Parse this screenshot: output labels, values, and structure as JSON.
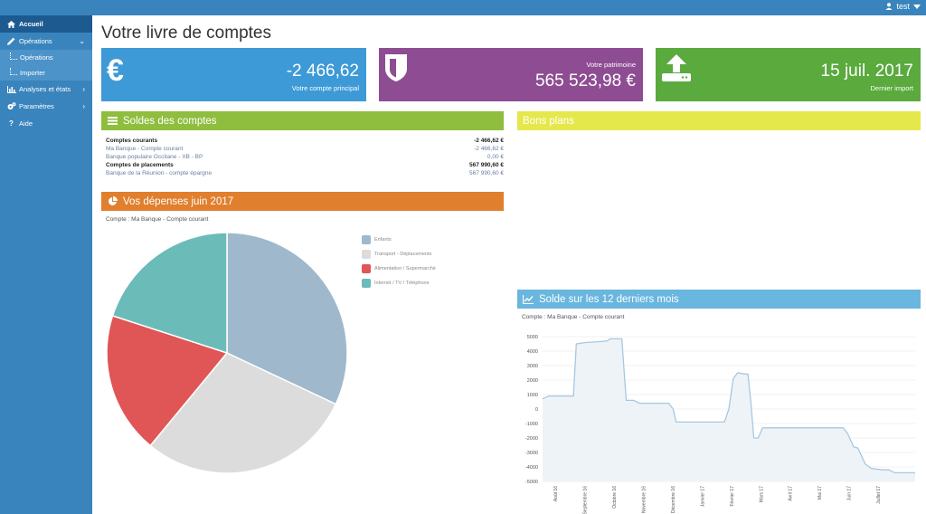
{
  "topbar": {
    "user": "test"
  },
  "sidebar": {
    "items": [
      {
        "label": "Accueil",
        "icon": "home-icon"
      },
      {
        "label": "Opérations",
        "icon": "pencil-icon"
      },
      {
        "label": "Analyses et états",
        "icon": "bar-chart-icon"
      },
      {
        "label": "Paramètres",
        "icon": "gears-icon"
      },
      {
        "label": "Aide",
        "icon": "question-icon"
      }
    ],
    "subitems": [
      {
        "label": "Opérations"
      },
      {
        "label": "Importer"
      }
    ]
  },
  "page": {
    "title": "Votre livre de comptes"
  },
  "tiles": [
    {
      "value": "-2 466,62",
      "label": "Votre compte principal",
      "color": "#3d9ad6",
      "icon": "euro-icon"
    },
    {
      "value": "565 523,98 €",
      "label": "Votre patrimoine",
      "color": "#8e4d93",
      "icon": "shield-icon"
    },
    {
      "value": "15 juil. 2017",
      "label": "Dernier import",
      "color": "#5aaa3e",
      "icon": "upload-icon"
    }
  ],
  "balances": {
    "title": "Soldes des comptes",
    "color": "#8fbe3f",
    "rows": [
      {
        "name": "Comptes courants",
        "amount": "-2 466,62 €"
      },
      {
        "name": "Ma Banque - Compte courant",
        "amount": "-2 466,62 €"
      },
      {
        "name": "Banque populaire Occitane - XB - BP",
        "amount": "0,00 €"
      },
      {
        "name": "Comptes de placements",
        "amount": "567 990,60 €"
      },
      {
        "name": "Banque de la Réunion - compte épargne",
        "amount": "567 990,60 €"
      }
    ]
  },
  "deals": {
    "title": "Bons plans",
    "color": "#e5e84a"
  },
  "expenses": {
    "title": "Vos dépenses juin 2017",
    "color": "#e07f2d",
    "subtitle": "Compte : Ma Banque - Compte courant"
  },
  "balance_history": {
    "title": "Solde sur les 12 derniers mois",
    "color": "#69b6de",
    "subtitle": "Compte : Ma Banque - Compte courant"
  },
  "chart_data": [
    {
      "type": "pie",
      "categories": [
        "Enfants",
        "Transport - Déplacements",
        "Alimentation / Supermarché",
        "Internet / TV / Téléphone"
      ],
      "values": [
        32,
        29,
        19,
        20
      ],
      "colors": [
        "#9fb8cc",
        "#dcdcdc",
        "#e05555",
        "#6bbbb9"
      ],
      "legend": "right"
    },
    {
      "type": "area",
      "x_labels": [
        "Août 16",
        "Septembre 16",
        "Octobre 16",
        "Novembre 16",
        "Décembre 16",
        "Janvier 17",
        "Février 17",
        "Mars 17",
        "Avril 17",
        "Mai 17",
        "Juin 17",
        "Juillet 17"
      ],
      "y_ticks": [
        5000,
        4000,
        3000,
        2000,
        1000,
        0,
        -1000,
        -2000,
        -3000,
        -4000,
        -5000
      ],
      "ylim": [
        -5000,
        5000
      ],
      "xlim": [
        0,
        12.7
      ],
      "color": "#a6c8e0",
      "fill": "#eef3f8",
      "points": [
        [
          0,
          700
        ],
        [
          0.2,
          900
        ],
        [
          0.7,
          900
        ],
        [
          1.05,
          900
        ],
        [
          1.15,
          4500
        ],
        [
          1.5,
          4600
        ],
        [
          1.9,
          4650
        ],
        [
          2.2,
          4700
        ],
        [
          2.3,
          4850
        ],
        [
          2.7,
          4850
        ],
        [
          2.85,
          600
        ],
        [
          3.1,
          600
        ],
        [
          3.3,
          400
        ],
        [
          4.3,
          400
        ],
        [
          4.45,
          0
        ],
        [
          4.55,
          -900
        ],
        [
          6.2,
          -900
        ],
        [
          6.35,
          0
        ],
        [
          6.5,
          2100
        ],
        [
          6.65,
          2500
        ],
        [
          6.8,
          2450
        ],
        [
          7.0,
          2400
        ],
        [
          7.1,
          500
        ],
        [
          7.2,
          -2000
        ],
        [
          7.35,
          -2000
        ],
        [
          7.5,
          -1300
        ],
        [
          10.25,
          -1300
        ],
        [
          10.4,
          -1700
        ],
        [
          10.6,
          -2600
        ],
        [
          10.75,
          -2700
        ],
        [
          11.0,
          -3800
        ],
        [
          11.2,
          -4100
        ],
        [
          11.6,
          -4200
        ],
        [
          11.8,
          -4200
        ],
        [
          12.0,
          -4400
        ],
        [
          12.7,
          -4400
        ]
      ]
    }
  ]
}
